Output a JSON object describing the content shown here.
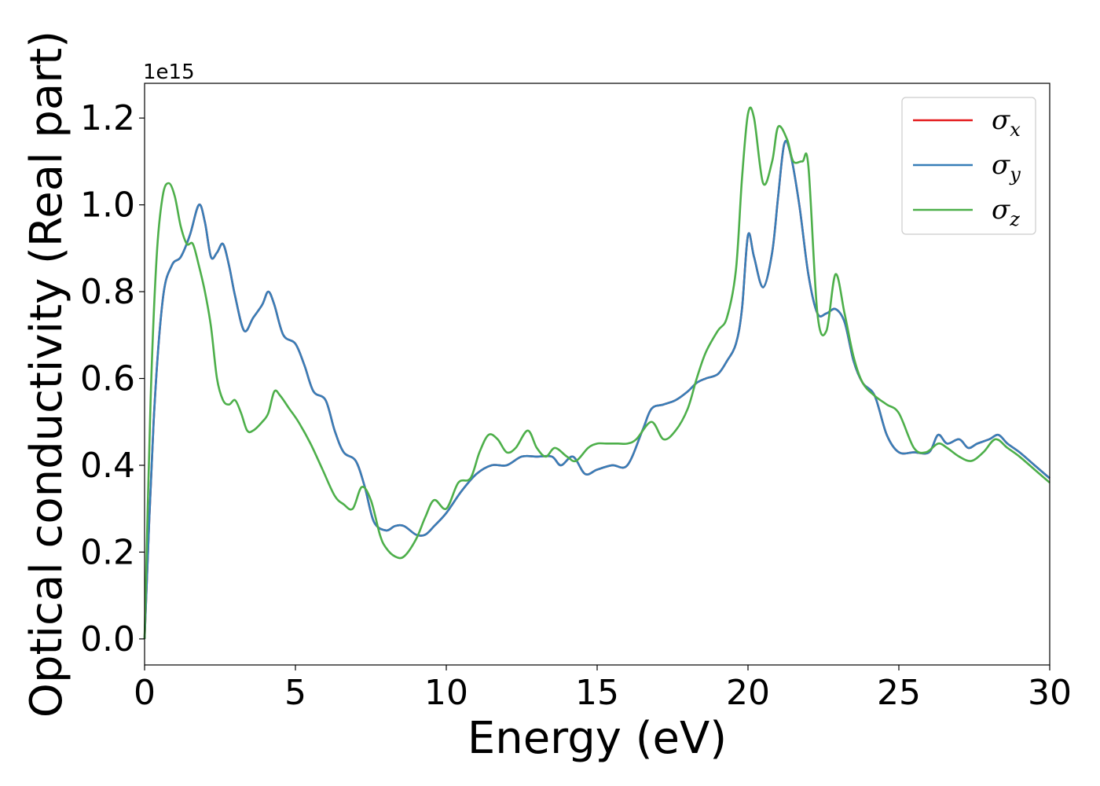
{
  "chart_data": {
    "type": "line",
    "xlabel": "Energy (eV)",
    "ylabel": "Optical conductivity (Real part)",
    "y_offset_label": "1e15",
    "xlim": [
      0,
      30
    ],
    "ylim": [
      -0.06,
      1.28
    ],
    "xticks": [
      0,
      5,
      10,
      15,
      20,
      25,
      30
    ],
    "yticks": [
      0.0,
      0.2,
      0.4,
      0.6,
      0.8,
      1.0,
      1.2
    ],
    "xtick_labels": [
      "0",
      "5",
      "10",
      "15",
      "20",
      "25",
      "30"
    ],
    "ytick_labels": [
      "0.0",
      "0.2",
      "0.4",
      "0.6",
      "0.8",
      "1.0",
      "1.2"
    ],
    "grid": false,
    "legend_position": "top-right",
    "series": [
      {
        "name": "σ",
        "subscript": "x",
        "color": "#e41a1c",
        "x": [
          0,
          0.3,
          0.6,
          0.9,
          1.2,
          1.5,
          1.8,
          2.0,
          2.2,
          2.4,
          2.6,
          2.8,
          3.0,
          3.3,
          3.6,
          3.9,
          4.1,
          4.3,
          4.6,
          5.0,
          5.3,
          5.6,
          6.0,
          6.3,
          6.6,
          7.0,
          7.3,
          7.6,
          8.0,
          8.3,
          8.6,
          9.0,
          9.3,
          9.6,
          10.0,
          10.5,
          11.0,
          11.5,
          12.0,
          12.5,
          13.0,
          13.5,
          13.8,
          14.2,
          14.6,
          15.0,
          15.5,
          16.0,
          16.5,
          16.8,
          17.2,
          17.6,
          18.0,
          18.3,
          18.6,
          19.0,
          19.3,
          19.6,
          19.8,
          20.0,
          20.2,
          20.5,
          20.8,
          21.0,
          21.2,
          21.4,
          21.7,
          22.0,
          22.3,
          22.6,
          22.9,
          23.2,
          23.5,
          23.8,
          24.2,
          24.6,
          25.0,
          25.5,
          26.0,
          26.3,
          26.6,
          27.0,
          27.3,
          27.6,
          28.0,
          28.3,
          28.6,
          29.0,
          29.5,
          30.0
        ],
        "values": [
          0.0,
          0.5,
          0.78,
          0.86,
          0.88,
          0.93,
          1.0,
          0.96,
          0.88,
          0.89,
          0.91,
          0.86,
          0.79,
          0.71,
          0.74,
          0.77,
          0.8,
          0.77,
          0.7,
          0.68,
          0.63,
          0.57,
          0.55,
          0.48,
          0.43,
          0.41,
          0.35,
          0.27,
          0.25,
          0.26,
          0.26,
          0.24,
          0.24,
          0.26,
          0.29,
          0.34,
          0.38,
          0.4,
          0.4,
          0.42,
          0.42,
          0.42,
          0.4,
          0.42,
          0.38,
          0.39,
          0.4,
          0.4,
          0.48,
          0.53,
          0.54,
          0.55,
          0.57,
          0.59,
          0.6,
          0.61,
          0.64,
          0.68,
          0.76,
          0.93,
          0.88,
          0.81,
          0.89,
          1.02,
          1.14,
          1.12,
          1.0,
          0.84,
          0.75,
          0.75,
          0.76,
          0.73,
          0.64,
          0.59,
          0.56,
          0.47,
          0.43,
          0.43,
          0.43,
          0.47,
          0.45,
          0.46,
          0.44,
          0.45,
          0.46,
          0.47,
          0.45,
          0.43,
          0.4,
          0.37
        ]
      },
      {
        "name": "σ",
        "subscript": "y",
        "color": "#377eb8",
        "x": [
          0,
          0.3,
          0.6,
          0.9,
          1.2,
          1.5,
          1.8,
          2.0,
          2.2,
          2.4,
          2.6,
          2.8,
          3.0,
          3.3,
          3.6,
          3.9,
          4.1,
          4.3,
          4.6,
          5.0,
          5.3,
          5.6,
          6.0,
          6.3,
          6.6,
          7.0,
          7.3,
          7.6,
          8.0,
          8.3,
          8.6,
          9.0,
          9.3,
          9.6,
          10.0,
          10.5,
          11.0,
          11.5,
          12.0,
          12.5,
          13.0,
          13.5,
          13.8,
          14.2,
          14.6,
          15.0,
          15.5,
          16.0,
          16.5,
          16.8,
          17.2,
          17.6,
          18.0,
          18.3,
          18.6,
          19.0,
          19.3,
          19.6,
          19.8,
          20.0,
          20.2,
          20.5,
          20.8,
          21.0,
          21.2,
          21.4,
          21.7,
          22.0,
          22.3,
          22.6,
          22.9,
          23.2,
          23.5,
          23.8,
          24.2,
          24.6,
          25.0,
          25.5,
          26.0,
          26.3,
          26.6,
          27.0,
          27.3,
          27.6,
          28.0,
          28.3,
          28.6,
          29.0,
          29.5,
          30.0
        ],
        "values": [
          0.0,
          0.5,
          0.78,
          0.86,
          0.88,
          0.93,
          1.0,
          0.96,
          0.88,
          0.89,
          0.91,
          0.86,
          0.79,
          0.71,
          0.74,
          0.77,
          0.8,
          0.77,
          0.7,
          0.68,
          0.63,
          0.57,
          0.55,
          0.48,
          0.43,
          0.41,
          0.35,
          0.27,
          0.25,
          0.26,
          0.26,
          0.24,
          0.24,
          0.26,
          0.29,
          0.34,
          0.38,
          0.4,
          0.4,
          0.42,
          0.42,
          0.42,
          0.4,
          0.42,
          0.38,
          0.39,
          0.4,
          0.4,
          0.48,
          0.53,
          0.54,
          0.55,
          0.57,
          0.59,
          0.6,
          0.61,
          0.64,
          0.68,
          0.76,
          0.93,
          0.88,
          0.81,
          0.89,
          1.02,
          1.14,
          1.12,
          1.0,
          0.84,
          0.75,
          0.75,
          0.76,
          0.73,
          0.64,
          0.59,
          0.56,
          0.47,
          0.43,
          0.43,
          0.43,
          0.47,
          0.45,
          0.46,
          0.44,
          0.45,
          0.46,
          0.47,
          0.45,
          0.43,
          0.4,
          0.37
        ]
      },
      {
        "name": "σ",
        "subscript": "z",
        "color": "#4daf4a",
        "x": [
          0,
          0.2,
          0.4,
          0.6,
          0.8,
          1.0,
          1.2,
          1.4,
          1.6,
          1.8,
          2.0,
          2.2,
          2.4,
          2.6,
          2.8,
          3.0,
          3.2,
          3.4,
          3.6,
          3.9,
          4.1,
          4.3,
          4.5,
          4.8,
          5.1,
          5.5,
          5.9,
          6.3,
          6.6,
          6.9,
          7.2,
          7.5,
          7.8,
          8.0,
          8.3,
          8.6,
          9.0,
          9.3,
          9.6,
          10.0,
          10.4,
          10.8,
          11.1,
          11.4,
          11.7,
          12.0,
          12.3,
          12.7,
          13.0,
          13.3,
          13.6,
          14.0,
          14.3,
          14.7,
          15.0,
          15.3,
          15.7,
          16.0,
          16.3,
          16.8,
          17.2,
          17.6,
          18.0,
          18.3,
          18.6,
          19.0,
          19.3,
          19.6,
          19.8,
          20.0,
          20.2,
          20.5,
          20.8,
          21.0,
          21.3,
          21.5,
          21.8,
          22.0,
          22.3,
          22.6,
          22.9,
          23.2,
          23.5,
          23.8,
          24.2,
          24.6,
          25.0,
          25.5,
          25.9,
          26.3,
          26.6,
          27.0,
          27.4,
          27.8,
          28.2,
          28.6,
          29.0,
          29.5,
          30.0
        ],
        "values": [
          0.0,
          0.55,
          0.88,
          1.02,
          1.05,
          1.02,
          0.95,
          0.91,
          0.91,
          0.86,
          0.8,
          0.72,
          0.6,
          0.55,
          0.54,
          0.55,
          0.52,
          0.48,
          0.48,
          0.5,
          0.52,
          0.57,
          0.56,
          0.53,
          0.5,
          0.45,
          0.39,
          0.33,
          0.31,
          0.3,
          0.35,
          0.32,
          0.24,
          0.21,
          0.19,
          0.19,
          0.23,
          0.28,
          0.32,
          0.3,
          0.36,
          0.37,
          0.43,
          0.47,
          0.46,
          0.43,
          0.44,
          0.48,
          0.44,
          0.42,
          0.44,
          0.42,
          0.41,
          0.44,
          0.45,
          0.45,
          0.45,
          0.45,
          0.46,
          0.5,
          0.46,
          0.48,
          0.53,
          0.6,
          0.66,
          0.71,
          0.74,
          0.85,
          1.06,
          1.21,
          1.2,
          1.05,
          1.1,
          1.18,
          1.15,
          1.1,
          1.1,
          1.09,
          0.75,
          0.71,
          0.84,
          0.75,
          0.65,
          0.59,
          0.56,
          0.54,
          0.52,
          0.44,
          0.43,
          0.45,
          0.44,
          0.42,
          0.41,
          0.43,
          0.46,
          0.44,
          0.42,
          0.39,
          0.36
        ]
      }
    ]
  }
}
